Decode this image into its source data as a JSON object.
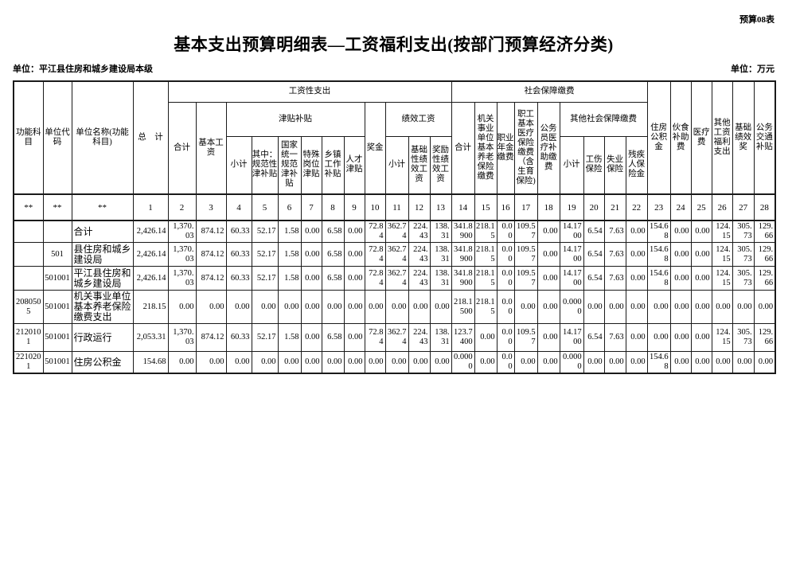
{
  "page": {
    "form_code": "预算08表",
    "title": "基本支出预算明细表—工资福利支出(按部门预算经济分类)",
    "unit_name_label": "单位：平江县住房和城乡建设局本级",
    "unit_of_measure_label": "单位：万元"
  },
  "table": {
    "header": {
      "func_subject": "功能科目",
      "unit_code": "单位代码",
      "unit_name": "单位名称(功能科目)",
      "grand_total": "总　计",
      "wage_group": "工资性支出",
      "wage_total": "合计",
      "basic_wage": "基本工资",
      "allowance_group": "津贴补贴",
      "allowance_subtotal": "小计",
      "allowance_standard": "其中：规范性津补贴",
      "allowance_national": "国家统一规范津补贴",
      "allowance_special_post": "特殊岗位津贴",
      "allowance_township": "乡镇工作补贴",
      "allowance_talent": "人才津贴",
      "bonus": "奖金",
      "perf_group": "绩效工资",
      "perf_subtotal": "小计",
      "perf_basic": "基础性绩效工资",
      "perf_reward": "奖励性绩效工资",
      "social_group": "社会保障缴费",
      "social_total": "合计",
      "pension": "机关事业单位基本养老保险缴费",
      "occupational_annuity": "职业年金缴费",
      "medical_insurance": "职工基本医疗保险缴费（含生育保险)",
      "civil_servant_medical": "公务员医疗补助缴费",
      "other_social_group": "其他社会保障缴费",
      "other_social_subtotal": "小计",
      "injury_insurance": "工伤保险",
      "unemployment_insurance": "失业保险",
      "disability_fund": "残疾人保险金",
      "housing_fund": "住房公积金",
      "meal_subsidy": "伙食补助费",
      "medical_fee": "医疗费",
      "other_welfare": "其他工资福利支出",
      "basic_perf_award": "基础绩效奖",
      "transport_subsidy": "公务交通补贴"
    },
    "col_numbers": [
      "**",
      "**",
      "**",
      "1",
      "2",
      "3",
      "4",
      "5",
      "6",
      "7",
      "8",
      "9",
      "10",
      "11",
      "12",
      "13",
      "14",
      "15",
      "16",
      "17",
      "18",
      "19",
      "20",
      "21",
      "22",
      "23",
      "24",
      "25",
      "26",
      "27",
      "28"
    ],
    "rows": [
      {
        "func_code": "",
        "unit_code": "",
        "name": "合计",
        "values": [
          "2,426.14",
          "1,370.03",
          "874.12",
          "60.33",
          "52.17",
          "1.58",
          "0.00",
          "6.58",
          "0.00",
          "72.84",
          "362.74",
          "224.43",
          "138.31",
          "341.8900",
          "218.15",
          "0.00",
          "109.57",
          "0.00",
          "14.1700",
          "6.54",
          "7.63",
          "0.00",
          "154.68",
          "0.00",
          "0.00",
          "124.15",
          "305.73",
          "129.66"
        ]
      },
      {
        "func_code": "",
        "unit_code": "501",
        "name": "县住房和城乡建设局",
        "values": [
          "2,426.14",
          "1,370.03",
          "874.12",
          "60.33",
          "52.17",
          "1.58",
          "0.00",
          "6.58",
          "0.00",
          "72.84",
          "362.74",
          "224.43",
          "138.31",
          "341.8900",
          "218.15",
          "0.00",
          "109.57",
          "0.00",
          "14.1700",
          "6.54",
          "7.63",
          "0.00",
          "154.68",
          "0.00",
          "0.00",
          "124.15",
          "305.73",
          "129.66"
        ]
      },
      {
        "func_code": "",
        "unit_code": "501001",
        "name": "平江县住房和城乡建设局",
        "values": [
          "2,426.14",
          "1,370.03",
          "874.12",
          "60.33",
          "52.17",
          "1.58",
          "0.00",
          "6.58",
          "0.00",
          "72.84",
          "362.74",
          "224.43",
          "138.31",
          "341.8900",
          "218.15",
          "0.00",
          "109.57",
          "0.00",
          "14.1700",
          "6.54",
          "7.63",
          "0.00",
          "154.68",
          "0.00",
          "0.00",
          "124.15",
          "305.73",
          "129.66"
        ]
      },
      {
        "func_code": "2080505",
        "unit_code": "501001",
        "name": "机关事业单位基本养老保险缴费支出",
        "values": [
          "218.15",
          "0.00",
          "0.00",
          "0.00",
          "0.00",
          "0.00",
          "0.00",
          "0.00",
          "0.00",
          "0.00",
          "0.00",
          "0.00",
          "0.00",
          "218.1500",
          "218.15",
          "0.00",
          "0.00",
          "0.00",
          "0.0000",
          "0.00",
          "0.00",
          "0.00",
          "0.00",
          "0.00",
          "0.00",
          "0.00",
          "0.00",
          "0.00"
        ]
      },
      {
        "func_code": "2120101",
        "unit_code": "501001",
        "name": "行政运行",
        "values": [
          "2,053.31",
          "1,370.03",
          "874.12",
          "60.33",
          "52.17",
          "1.58",
          "0.00",
          "6.58",
          "0.00",
          "72.84",
          "362.74",
          "224.43",
          "138.31",
          "123.7400",
          "0.00",
          "0.00",
          "109.57",
          "0.00",
          "14.1700",
          "6.54",
          "7.63",
          "0.00",
          "0.00",
          "0.00",
          "0.00",
          "124.15",
          "305.73",
          "129.66"
        ]
      },
      {
        "func_code": "2210201",
        "unit_code": "501001",
        "name": "住房公积金",
        "values": [
          "154.68",
          "0.00",
          "0.00",
          "0.00",
          "0.00",
          "0.00",
          "0.00",
          "0.00",
          "0.00",
          "0.00",
          "0.00",
          "0.00",
          "0.00",
          "0.0000",
          "0.00",
          "0.00",
          "0.00",
          "0.00",
          "0.0000",
          "0.00",
          "0.00",
          "0.00",
          "154.68",
          "0.00",
          "0.00",
          "0.00",
          "0.00",
          "0.00"
        ]
      }
    ]
  }
}
